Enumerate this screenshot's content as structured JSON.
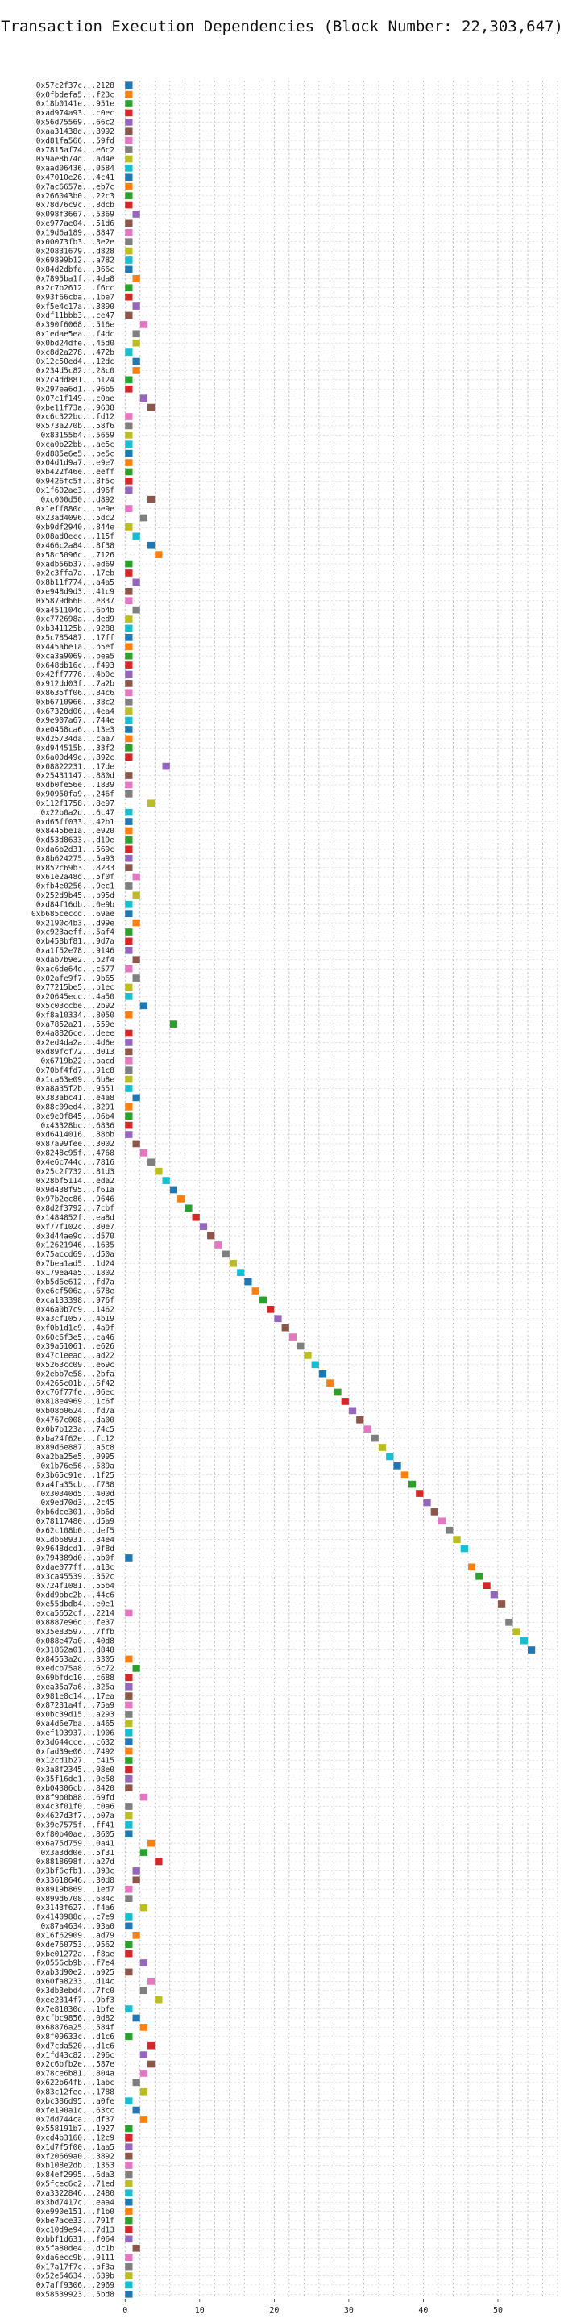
{
  "chart_data": {
    "type": "bar",
    "title": "Transaction Execution Dependencies (Block Number: 22,303,647)",
    "xlabel": "",
    "ylabel": "",
    "xlim": [
      -1,
      58
    ],
    "xticks": [
      0,
      10,
      20,
      30,
      40,
      50
    ],
    "grid": true,
    "legend": "none",
    "bar_width": 1,
    "palette": [
      "#1f77b4",
      "#ff7f0e",
      "#2ca02c",
      "#d62728",
      "#9467bd",
      "#8c564b",
      "#e377c2",
      "#7f7f7f",
      "#bcbd22",
      "#17becf"
    ],
    "transactions": [
      {
        "label": "0x57c2f37c...2128",
        "start": 0
      },
      {
        "label": "0x0fbdefa5...f23c",
        "start": 0
      },
      {
        "label": "0x18b0141e...951e",
        "start": 0
      },
      {
        "label": "0xad974a93...c0ec",
        "start": 0
      },
      {
        "label": "0x56d75569...66c2",
        "start": 0
      },
      {
        "label": "0xaa31438d...8992",
        "start": 0
      },
      {
        "label": "0xd81fa566...59fd",
        "start": 0
      },
      {
        "label": "0x7815af74...e6c2",
        "start": 0
      },
      {
        "label": "0x9ae8b74d...ad4e",
        "start": 0
      },
      {
        "label": "0xaad06436...0584",
        "start": 0
      },
      {
        "label": "0x47010e26...4c41",
        "start": 0
      },
      {
        "label": "0x7ac6657a...eb7c",
        "start": 0
      },
      {
        "label": "0x266043b0...22c3",
        "start": 0
      },
      {
        "label": "0x78d76c9c...8dcb",
        "start": 0
      },
      {
        "label": "0x098f3667...5369",
        "start": 1
      },
      {
        "label": "0xe977ae04...51d6",
        "start": 0
      },
      {
        "label": "0x19d6a189...8847",
        "start": 0
      },
      {
        "label": "0x00073fb3...3e2e",
        "start": 0
      },
      {
        "label": "0x20831679...d828",
        "start": 0
      },
      {
        "label": "0x69899b12...a782",
        "start": 0
      },
      {
        "label": "0x84d2dbfa...366c",
        "start": 0
      },
      {
        "label": "0x7895ba1f...4da8",
        "start": 1
      },
      {
        "label": "0x2c7b2612...f6cc",
        "start": 0
      },
      {
        "label": "0x93f66cba...1be7",
        "start": 0
      },
      {
        "label": "0xf5e4c17a...3890",
        "start": 1
      },
      {
        "label": "0xdf11bbb3...ce47",
        "start": 0
      },
      {
        "label": "0x390f6068...516e",
        "start": 2
      },
      {
        "label": "0x1edae5ea...f4dc",
        "start": 1
      },
      {
        "label": "0x0bd24dfe...45d0",
        "start": 1
      },
      {
        "label": "0xc8d2a278...472b",
        "start": 0
      },
      {
        "label": "0x12c50ed4...12dc",
        "start": 1
      },
      {
        "label": "0x234d5c82...28c0",
        "start": 1
      },
      {
        "label": "0x2c4dd881...b124",
        "start": 0
      },
      {
        "label": "0x297ea6d1...96b5",
        "start": 0
      },
      {
        "label": "0x07c1f149...c0ae",
        "start": 2
      },
      {
        "label": "0xbe11f73a...9638",
        "start": 3
      },
      {
        "label": "0xc6c322bc...fd12",
        "start": 0
      },
      {
        "label": "0x573a270b...58f6",
        "start": 0
      },
      {
        "label": "0x83155b4...5659",
        "start": 0
      },
      {
        "label": "0xca0b22bb...ae5c",
        "start": 0
      },
      {
        "label": "0xd885e6e5...be5c",
        "start": 0
      },
      {
        "label": "0x04d1d9a7...e9e7",
        "start": 0
      },
      {
        "label": "0xb422f46e...eeff",
        "start": 0
      },
      {
        "label": "0x9426fc5f...8f5c",
        "start": 0
      },
      {
        "label": "0x1f602ae3...d96f",
        "start": 0
      },
      {
        "label": "0xc000d50...d892",
        "start": 3
      },
      {
        "label": "0x1eff880c...be9e",
        "start": 0
      },
      {
        "label": "0x23ad4096...5dc2",
        "start": 2
      },
      {
        "label": "0xb9df2940...844e",
        "start": 0
      },
      {
        "label": "0x08ad0ecc...115f",
        "start": 1
      },
      {
        "label": "0x466c2a84...8f38",
        "start": 3
      },
      {
        "label": "0x58c5096c...7126",
        "start": 4
      },
      {
        "label": "0xadb56b37...ed69",
        "start": 0
      },
      {
        "label": "0x2c3ffa7a...17eb",
        "start": 0
      },
      {
        "label": "0x8b11f774...a4a5",
        "start": 1
      },
      {
        "label": "0xe948d9d3...41c9",
        "start": 0
      },
      {
        "label": "0x5879d660...e837",
        "start": 0
      },
      {
        "label": "0xa451104d...6b4b",
        "start": 1
      },
      {
        "label": "0xc772698a...ded9",
        "start": 0
      },
      {
        "label": "0xb341125b...9288",
        "start": 0
      },
      {
        "label": "0x5c785487...17ff",
        "start": 0
      },
      {
        "label": "0x445abe1a...b5ef",
        "start": 0
      },
      {
        "label": "0xca3a9069...bea5",
        "start": 0
      },
      {
        "label": "0x648db16c...f493",
        "start": 0
      },
      {
        "label": "0x42ff7776...4b0c",
        "start": 0
      },
      {
        "label": "0x912dd03f...7a2b",
        "start": 0
      },
      {
        "label": "0x8635ff06...84c6",
        "start": 0
      },
      {
        "label": "0xb6710966...38c2",
        "start": 0
      },
      {
        "label": "0x67328d06...4ea4",
        "start": 0
      },
      {
        "label": "0x9e907a67...744e",
        "start": 0
      },
      {
        "label": "0xe0458ca6...13e3",
        "start": 0
      },
      {
        "label": "0xd25734da...caa7",
        "start": 0
      },
      {
        "label": "0xd944515b...33f2",
        "start": 0
      },
      {
        "label": "0x6a00d49e...892c",
        "start": 0
      },
      {
        "label": "0x08822231...17de",
        "start": 5
      },
      {
        "label": "0x25431147...880d",
        "start": 0
      },
      {
        "label": "0xdb0fe56e...1839",
        "start": 0
      },
      {
        "label": "0x90950fa9...246f",
        "start": 0
      },
      {
        "label": "0x112f1758...8e97",
        "start": 3
      },
      {
        "label": "0x22b0a2d...6c47",
        "start": 0
      },
      {
        "label": "0xd65ff033...42b1",
        "start": 0
      },
      {
        "label": "0x8445be1a...e920",
        "start": 0
      },
      {
        "label": "0xd53d8633...d19e",
        "start": 0
      },
      {
        "label": "0xda6b2d31...569c",
        "start": 0
      },
      {
        "label": "0x8b624275...5a93",
        "start": 0
      },
      {
        "label": "0x852c69b3...8233",
        "start": 0
      },
      {
        "label": "0x61e2a48d...5f0f",
        "start": 1
      },
      {
        "label": "0xfb4e0256...9ec1",
        "start": 0
      },
      {
        "label": "0x252d9b45...b95d",
        "start": 1
      },
      {
        "label": "0xd84f16db...0e9b",
        "start": 0
      },
      {
        "label": "0xb685ceccd...69ae",
        "start": 0
      },
      {
        "label": "0x2190c4b3...d99e",
        "start": 1
      },
      {
        "label": "0xc923aeff...5af4",
        "start": 0
      },
      {
        "label": "0xb458bf81...9d7a",
        "start": 0
      },
      {
        "label": "0xa1f52e78...9146",
        "start": 0
      },
      {
        "label": "0xdab7b9e2...b2f4",
        "start": 1
      },
      {
        "label": "0xac6de64d...c577",
        "start": 0
      },
      {
        "label": "0x02afe9f7...9b65",
        "start": 1
      },
      {
        "label": "0x77215be5...b1ec",
        "start": 0
      },
      {
        "label": "0x20645ecc...4a50",
        "start": 0
      },
      {
        "label": "0x5c03ccbe...2b92",
        "start": 2
      },
      {
        "label": "0xf8a10334...8050",
        "start": 0
      },
      {
        "label": "0xa7852a21...559e",
        "start": 6
      },
      {
        "label": "0x4a8826ce...deee",
        "start": 0
      },
      {
        "label": "0x2ed4da2a...4d6e",
        "start": 0
      },
      {
        "label": "0xd89fcf72...d013",
        "start": 0
      },
      {
        "label": "0x6719b22...bacd",
        "start": 0
      },
      {
        "label": "0x70bf4fd7...91c8",
        "start": 0
      },
      {
        "label": "0x1ca63e09...6b8e",
        "start": 0
      },
      {
        "label": "0xa8a35f2b...9551",
        "start": 0
      },
      {
        "label": "0x383abc41...e4a8",
        "start": 1
      },
      {
        "label": "0x88c09ed4...8291",
        "start": 0
      },
      {
        "label": "0xe9e0f845...06b4",
        "start": 0
      },
      {
        "label": "0x43328bc...6836",
        "start": 0
      },
      {
        "label": "0xd6414016...88bb",
        "start": 0
      },
      {
        "label": "0x87a99fee...3002",
        "start": 1
      },
      {
        "label": "0x8248c95f...4768",
        "start": 2
      },
      {
        "label": "0x4e6c744c...7816",
        "start": 3
      },
      {
        "label": "0x25c2f732...81d3",
        "start": 4
      },
      {
        "label": "0x28bf5114...eda2",
        "start": 5
      },
      {
        "label": "0x9d438f95...f61a",
        "start": 6
      },
      {
        "label": "0x97b2ec86...9646",
        "start": 7
      },
      {
        "label": "0x8d2f3792...7cbf",
        "start": 8
      },
      {
        "label": "0x1484852f...ea8d",
        "start": 9
      },
      {
        "label": "0xf77f102c...80e7",
        "start": 10
      },
      {
        "label": "0x3d44ae9d...d570",
        "start": 11
      },
      {
        "label": "0x12621946...1635",
        "start": 12
      },
      {
        "label": "0x75accd69...d50a",
        "start": 13
      },
      {
        "label": "0x7bea1ad5...1d24",
        "start": 14
      },
      {
        "label": "0x179ea4a5...1802",
        "start": 15
      },
      {
        "label": "0xb5d6e612...fd7a",
        "start": 16
      },
      {
        "label": "0xe6cf506a...678e",
        "start": 17
      },
      {
        "label": "0xca133398...976f",
        "start": 18
      },
      {
        "label": "0x46a0b7c9...1462",
        "start": 19
      },
      {
        "label": "0xa3cf1057...4b19",
        "start": 20
      },
      {
        "label": "0xf0b1d1c9...4a9f",
        "start": 21
      },
      {
        "label": "0x60c6f3e5...ca46",
        "start": 22
      },
      {
        "label": "0x39a51061...e626",
        "start": 23
      },
      {
        "label": "0x47c1eead...ad22",
        "start": 24
      },
      {
        "label": "0x5263cc09...e69c",
        "start": 25
      },
      {
        "label": "0x2ebb7e58...2bfa",
        "start": 26
      },
      {
        "label": "0x4265c01b...6f42",
        "start": 27
      },
      {
        "label": "0xc76f77fe...06ec",
        "start": 28
      },
      {
        "label": "0x818e4969...1c6f",
        "start": 29
      },
      {
        "label": "0xb08b0624...fd7a",
        "start": 30
      },
      {
        "label": "0x4767c008...da00",
        "start": 31
      },
      {
        "label": "0x0b7b123a...74c5",
        "start": 32
      },
      {
        "label": "0xba24f62e...fc12",
        "start": 33
      },
      {
        "label": "0x89d6e887...a5c8",
        "start": 34
      },
      {
        "label": "0xa2ba25e5...0995",
        "start": 35
      },
      {
        "label": "0x1b76e56...589a",
        "start": 36
      },
      {
        "label": "0x3b65c91e...1f25",
        "start": 37
      },
      {
        "label": "0xa4fa35cb...f738",
        "start": 38
      },
      {
        "label": "0x30340d5...400d",
        "start": 39
      },
      {
        "label": "0x9ed70d3...2c45",
        "start": 40
      },
      {
        "label": "0xb6dce301...0b6d",
        "start": 41
      },
      {
        "label": "0x78117480...d5a9",
        "start": 42
      },
      {
        "label": "0x62c108b0...def5",
        "start": 43
      },
      {
        "label": "0x1db68931...34e4",
        "start": 44
      },
      {
        "label": "0x9648dcd1...0f8d",
        "start": 45
      },
      {
        "label": "0x794389d0...ab0f",
        "start": 0
      },
      {
        "label": "0xdae077ff...a13c",
        "start": 46
      },
      {
        "label": "0x3ca45539...352c",
        "start": 47
      },
      {
        "label": "0x724f1081...55b4",
        "start": 48
      },
      {
        "label": "0xdd9bbc2b...44c6",
        "start": 49
      },
      {
        "label": "0xe55dbdb4...e0e1",
        "start": 50
      },
      {
        "label": "0xca5652cf...2214",
        "start": 0
      },
      {
        "label": "0x8887e96d...fe37",
        "start": 51
      },
      {
        "label": "0x35e83597...7ffb",
        "start": 52
      },
      {
        "label": "0x088e47a0...40d8",
        "start": 53
      },
      {
        "label": "0x31862a01...d848",
        "start": 54
      },
      {
        "label": "0x84553a2d...3305",
        "start": 0
      },
      {
        "label": "0xedcb75a8...6c72",
        "start": 1
      },
      {
        "label": "0x69bfdc10...c688",
        "start": 0
      },
      {
        "label": "0xea35a7a6...325a",
        "start": 0
      },
      {
        "label": "0x981e8c14...17ea",
        "start": 0
      },
      {
        "label": "0x87231a4f...75a9",
        "start": 0
      },
      {
        "label": "0x0bc39d15...a293",
        "start": 0
      },
      {
        "label": "0xa4d6e7ba...a465",
        "start": 0
      },
      {
        "label": "0xef193937...1906",
        "start": 0
      },
      {
        "label": "0x3d644cce...c632",
        "start": 0
      },
      {
        "label": "0xfad39e06...7492",
        "start": 0
      },
      {
        "label": "0x12cd1b27...c415",
        "start": 0
      },
      {
        "label": "0x3a8f2345...08e0",
        "start": 0
      },
      {
        "label": "0x35f16de1...0e58",
        "start": 0
      },
      {
        "label": "0xb04306cb...8420",
        "start": 0
      },
      {
        "label": "0x8f9b0b88...69fd",
        "start": 2
      },
      {
        "label": "0x4c3f01f0...c0a6",
        "start": 0
      },
      {
        "label": "0x4627d3f7...b07a",
        "start": 0
      },
      {
        "label": "0x39e7575f...ff41",
        "start": 0
      },
      {
        "label": "0xf80b40ae...8605",
        "start": 0
      },
      {
        "label": "0x6a75d759...0a41",
        "start": 3
      },
      {
        "label": "0x3a3dd0e...5f31",
        "start": 2
      },
      {
        "label": "0x8818698f...a27d",
        "start": 4
      },
      {
        "label": "0x3bf6cfb1...893c",
        "start": 1
      },
      {
        "label": "0x33618646...30d8",
        "start": 1
      },
      {
        "label": "0x8919b869...1ed7",
        "start": 0
      },
      {
        "label": "0x899d6708...684c",
        "start": 0
      },
      {
        "label": "0x3143f627...f4a6",
        "start": 2
      },
      {
        "label": "0x4140988d...c7e9",
        "start": 0
      },
      {
        "label": "0x87a4634...93a0",
        "start": 0
      },
      {
        "label": "0x16f62909...ad79",
        "start": 1
      },
      {
        "label": "0xde760753...9562",
        "start": 0
      },
      {
        "label": "0xbe01272a...f8ae",
        "start": 0
      },
      {
        "label": "0x0556cb9b...f7e4",
        "start": 2
      },
      {
        "label": "0xab3d90e2...a925",
        "start": 0
      },
      {
        "label": "0x60fa8233...d14c",
        "start": 3
      },
      {
        "label": "0x3db3ebd4...7fc0",
        "start": 2
      },
      {
        "label": "0xee2314f7...9bf3",
        "start": 4
      },
      {
        "label": "0x7e81030d...1bfe",
        "start": 0
      },
      {
        "label": "0xcfbc9856...0d82",
        "start": 1
      },
      {
        "label": "0x68876a25...584f",
        "start": 2
      },
      {
        "label": "0x8f09633c...d1c6",
        "start": 0
      },
      {
        "label": "0xd7cda520...d1c6",
        "start": 3
      },
      {
        "label": "0x1fd43c82...296c",
        "start": 2
      },
      {
        "label": "0x2c6bfb2e...587e",
        "start": 3
      },
      {
        "label": "0x78ce6b81...804a",
        "start": 2
      },
      {
        "label": "0x622b64fb...1abc",
        "start": 1
      },
      {
        "label": "0x83c12fee...1788",
        "start": 2
      },
      {
        "label": "0xbc386d95...a0fe",
        "start": 0
      },
      {
        "label": "0xfe190a1c...63cc",
        "start": 1
      },
      {
        "label": "0x7dd744ca...df37",
        "start": 2
      },
      {
        "label": "0x558191b7...1927",
        "start": 0
      },
      {
        "label": "0xcd4b3160...12c9",
        "start": 0
      },
      {
        "label": "0x1d7f5f00...1aa5",
        "start": 0
      },
      {
        "label": "0xf20669a0...3892",
        "start": 0
      },
      {
        "label": "0xb108e2db...1353",
        "start": 0
      },
      {
        "label": "0x84ef2995...6da3",
        "start": 0
      },
      {
        "label": "0x5fcec6c2...71ed",
        "start": 0
      },
      {
        "label": "0xa3322846...2480",
        "start": 0
      },
      {
        "label": "0x3bd7417c...eaa4",
        "start": 0
      },
      {
        "label": "0xe990e151...f1b0",
        "start": 0
      },
      {
        "label": "0xbe7ace33...791f",
        "start": 0
      },
      {
        "label": "0xc10d9e94...7d13",
        "start": 0
      },
      {
        "label": "0xbbf1d631...f064",
        "start": 0
      },
      {
        "label": "0x5fa80de4...dc1b",
        "start": 1
      },
      {
        "label": "0xda6ecc9b...0111",
        "start": 0
      },
      {
        "label": "0x17a17f7c...bf3a",
        "start": 0
      },
      {
        "label": "0x52e54634...639b",
        "start": 0
      },
      {
        "label": "0x7aff9306...2969",
        "start": 0
      },
      {
        "label": "0x58539923...5bd8",
        "start": 0
      }
    ]
  }
}
